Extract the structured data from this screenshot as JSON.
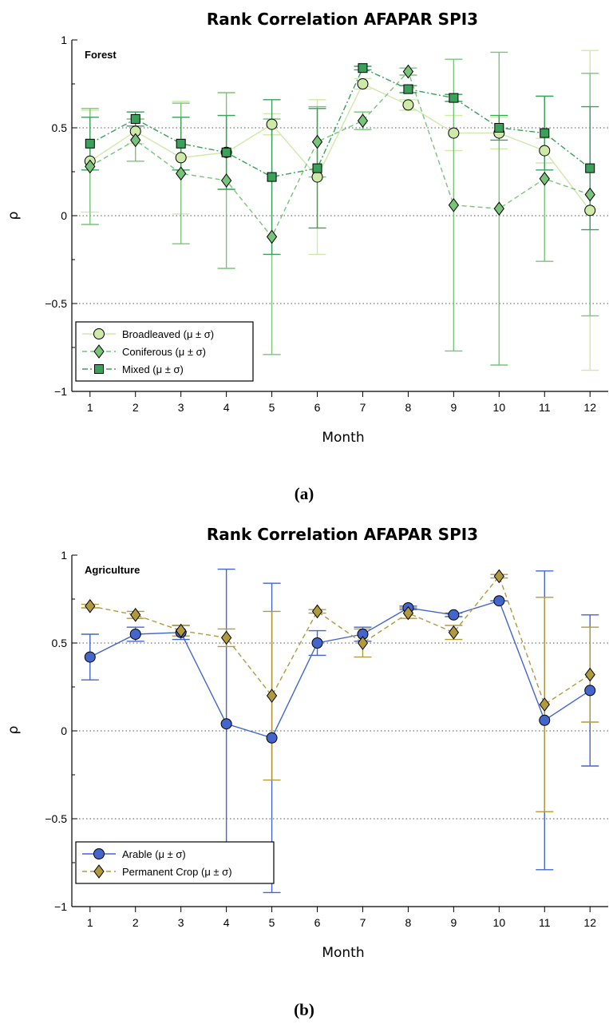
{
  "figure": {
    "panel_a_label": "(a)",
    "panel_b_label": "(b)"
  },
  "chart_data": [
    {
      "type": "line",
      "title": "Rank Correlation AFAPAR SPI3",
      "inset_label": "Forest",
      "xlabel": "Month",
      "ylabel": "ρ",
      "xlim": [
        0.6,
        12.4
      ],
      "ylim": [
        -1,
        1
      ],
      "x_ticks": [
        1,
        2,
        3,
        4,
        5,
        6,
        7,
        8,
        9,
        10,
        11,
        12
      ],
      "y_ticks": [
        -1,
        -0.5,
        0,
        0.5,
        1
      ],
      "y_tick_labels": [
        "−1",
        "−0.5",
        "0",
        "0.5",
        "1"
      ],
      "grid": "horizontal dotted",
      "legend_position": "bottom-left",
      "series": [
        {
          "name": "Broadleaved (μ ± σ)",
          "marker": "circle",
          "color": "#cfe9a8",
          "line_style": "solid",
          "x": [
            1,
            2,
            3,
            4,
            5,
            6,
            7,
            8,
            9,
            10,
            11,
            12
          ],
          "values": [
            0.31,
            0.48,
            0.33,
            0.36,
            0.52,
            0.22,
            0.75,
            0.63,
            0.47,
            0.47,
            0.37,
            0.03
          ],
          "err": [
            0.29,
            0.07,
            0.32,
            0.21,
            0.06,
            0.44,
            0.03,
            0.03,
            0.1,
            0.09,
            0.07,
            0.91
          ]
        },
        {
          "name": "Coniferous (μ ± σ)",
          "marker": "diamond",
          "color": "#79c47a",
          "line_style": "dashed",
          "x": [
            1,
            2,
            3,
            4,
            5,
            6,
            7,
            8,
            9,
            10,
            11,
            12
          ],
          "values": [
            0.28,
            0.43,
            0.24,
            0.2,
            -0.12,
            0.42,
            0.54,
            0.82,
            0.06,
            0.04,
            0.21,
            0.12
          ],
          "err": [
            0.33,
            0.12,
            0.4,
            0.5,
            0.67,
            0.2,
            0.05,
            0.02,
            0.83,
            0.89,
            0.47,
            0.69
          ]
        },
        {
          "name": "Mixed (μ ± σ)",
          "marker": "square",
          "color": "#3aa05a",
          "line_style": "dash-dot",
          "x": [
            1,
            2,
            3,
            4,
            5,
            6,
            7,
            8,
            9,
            10,
            11,
            12
          ],
          "values": [
            0.41,
            0.55,
            0.41,
            0.36,
            0.22,
            0.27,
            0.84,
            0.72,
            0.67,
            0.5,
            0.47,
            0.27
          ],
          "err": [
            0.15,
            0.04,
            0.15,
            0.21,
            0.44,
            0.34,
            0.01,
            0.02,
            0.02,
            0.07,
            0.21,
            0.35
          ]
        }
      ]
    },
    {
      "type": "line",
      "title": "Rank Correlation AFAPAR SPI3",
      "inset_label": "Agriculture",
      "xlabel": "Month",
      "ylabel": "ρ",
      "xlim": [
        0.6,
        12.4
      ],
      "ylim": [
        -1,
        1
      ],
      "x_ticks": [
        1,
        2,
        3,
        4,
        5,
        6,
        7,
        8,
        9,
        10,
        11,
        12
      ],
      "y_ticks": [
        -1,
        -0.5,
        0,
        0.5,
        1
      ],
      "y_tick_labels": [
        "−1",
        "−0.5",
        "0",
        "0.5",
        "1"
      ],
      "grid": "horizontal dotted",
      "legend_position": "bottom-left",
      "series": [
        {
          "name": "Arable (μ ± σ)",
          "marker": "circle",
          "color": "#4466cc",
          "line_style": "solid",
          "x": [
            1,
            2,
            3,
            4,
            5,
            6,
            7,
            8,
            9,
            10,
            11,
            12
          ],
          "values": [
            0.42,
            0.55,
            0.56,
            0.04,
            -0.04,
            0.5,
            0.55,
            0.7,
            0.66,
            0.74,
            0.06,
            0.23
          ],
          "err": [
            0.13,
            0.04,
            0.04,
            0.88,
            0.88,
            0.07,
            0.04,
            0.01,
            0.01,
            0.0,
            0.85,
            0.43
          ]
        },
        {
          "name": "Permanent Crop (μ ± σ)",
          "marker": "diamond",
          "color": "#b09a3c",
          "line_style": "dashed",
          "x": [
            1,
            2,
            3,
            4,
            5,
            6,
            7,
            8,
            9,
            10,
            11,
            12
          ],
          "values": [
            0.71,
            0.66,
            0.57,
            0.53,
            0.2,
            0.68,
            0.5,
            0.67,
            0.56,
            0.88,
            0.15,
            0.32
          ],
          "err": [
            0.01,
            0.02,
            0.03,
            0.05,
            0.48,
            0.01,
            0.08,
            0.03,
            0.04,
            0.01,
            0.61,
            0.27
          ]
        }
      ]
    }
  ]
}
